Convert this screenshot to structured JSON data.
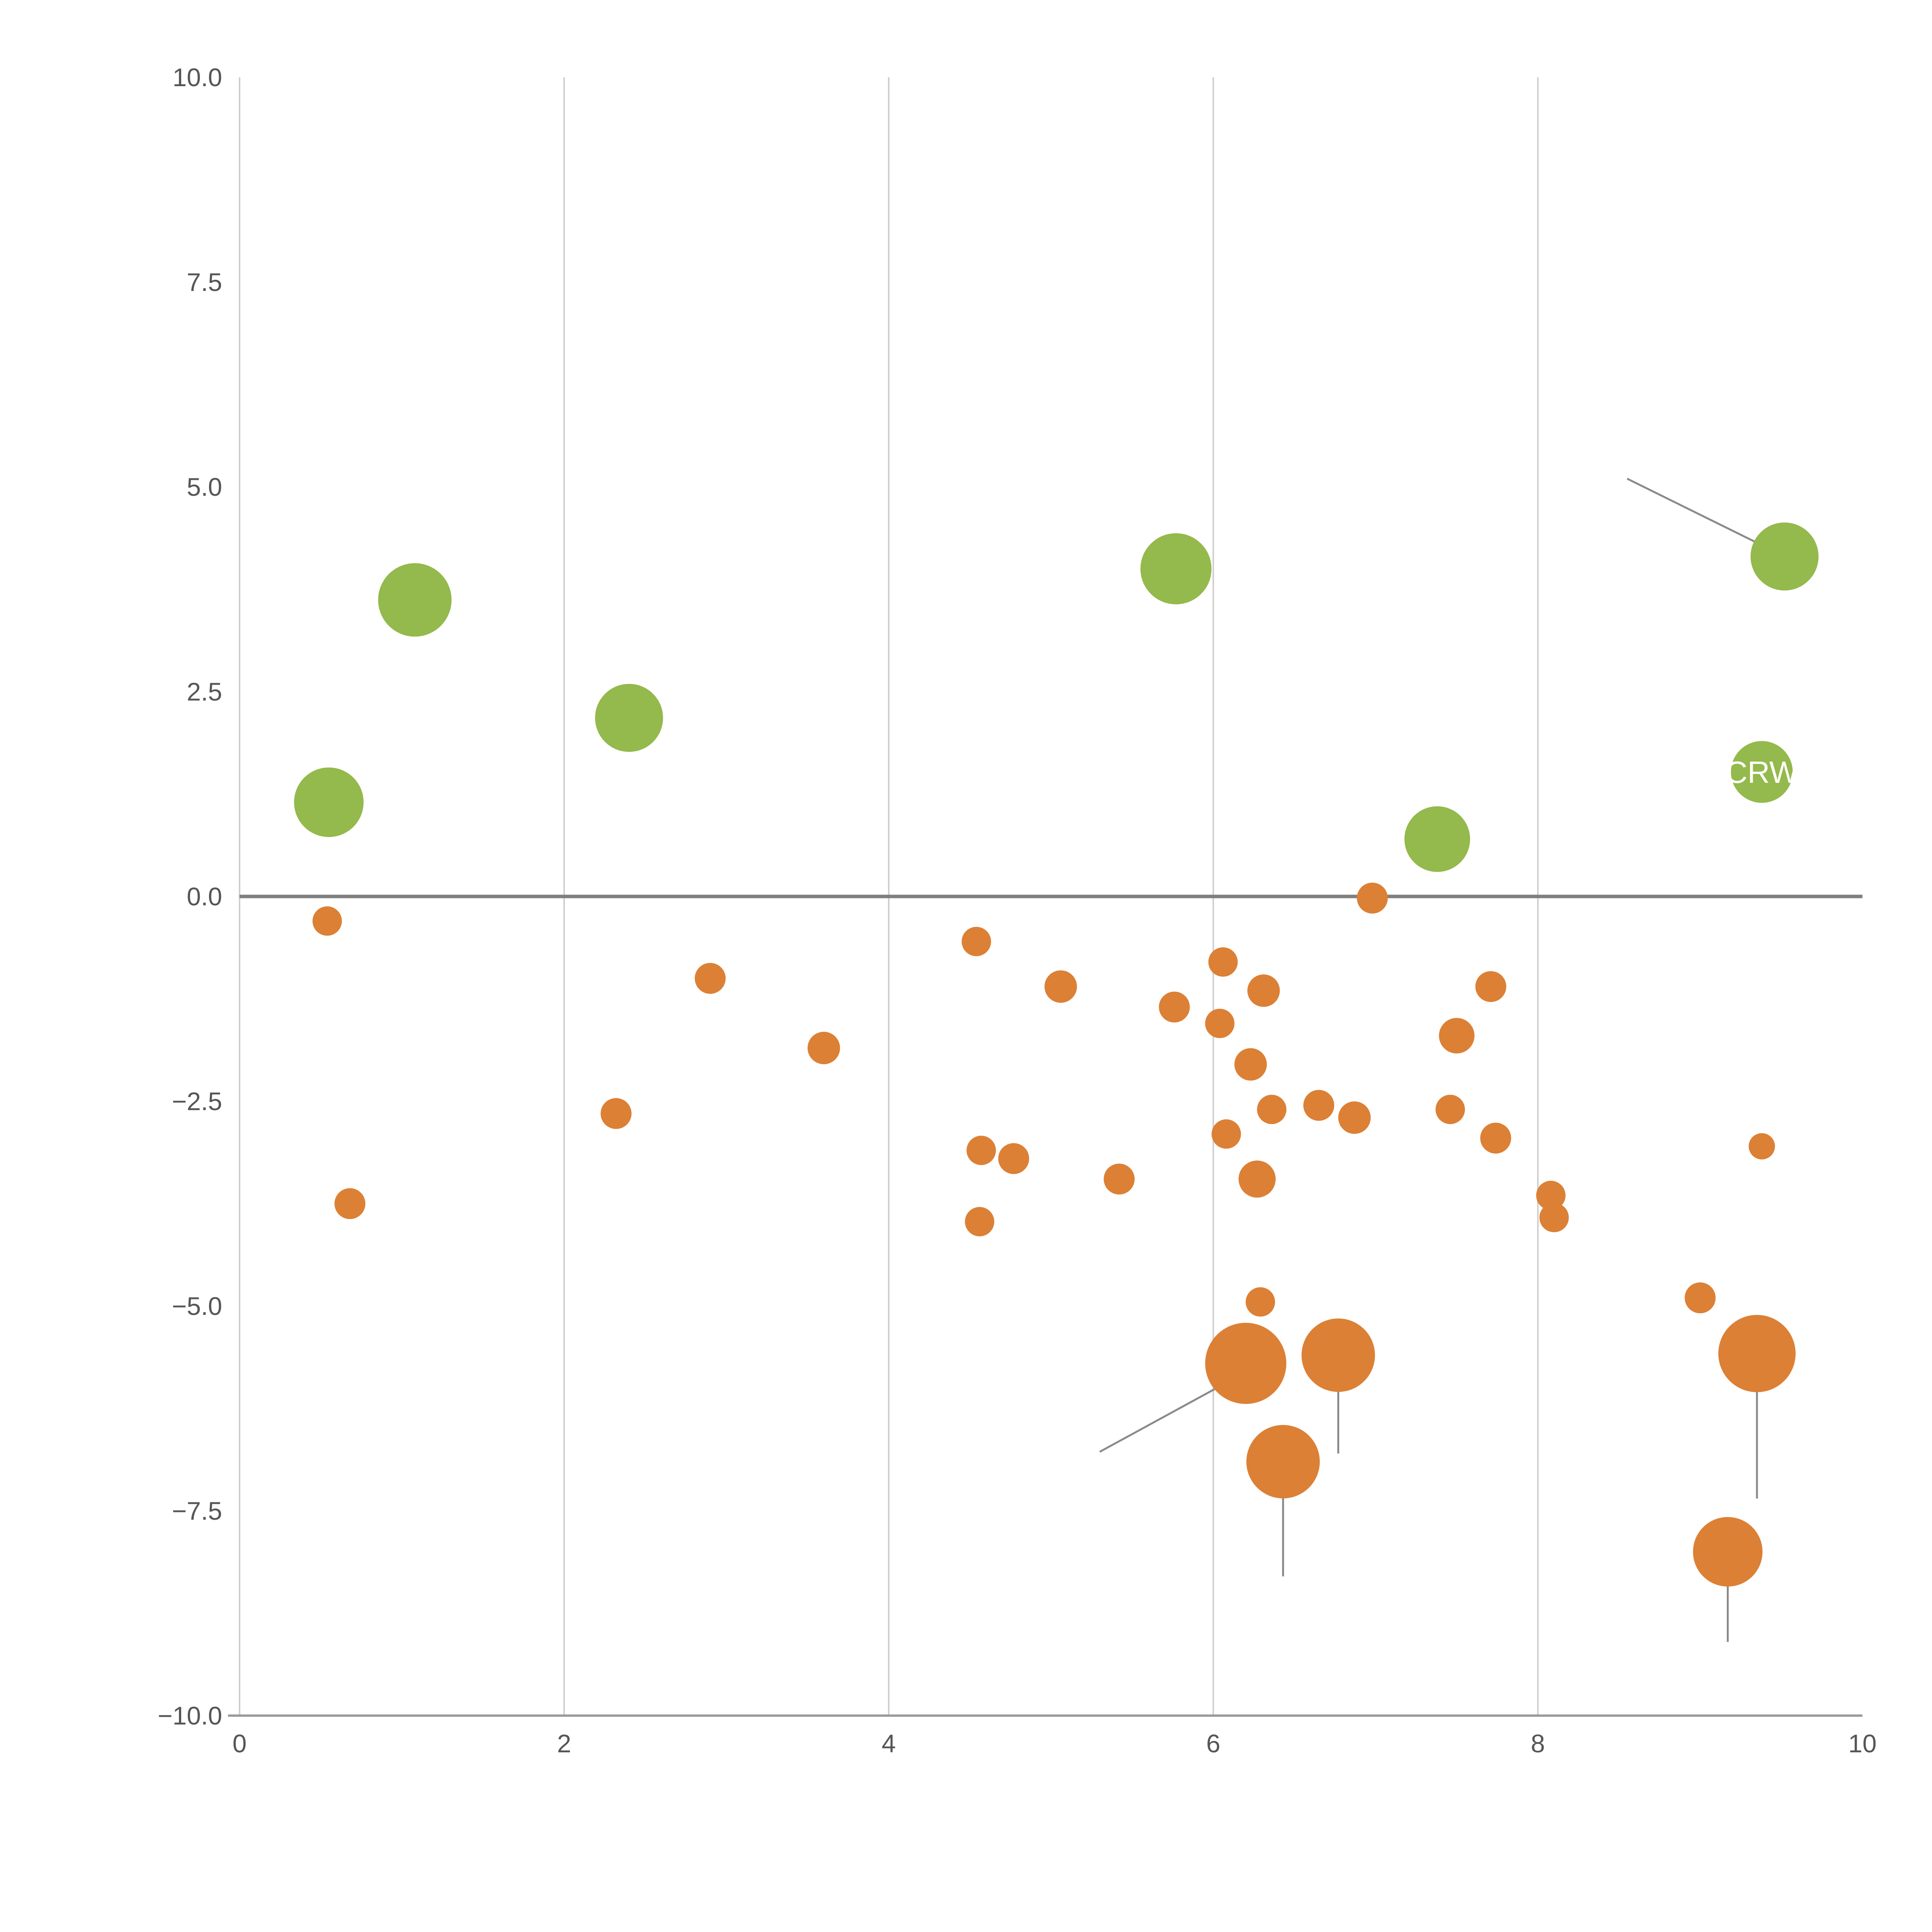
{
  "chart_data": {
    "type": "scatter",
    "title": "",
    "xlabel": "",
    "ylabel": "",
    "xlim": [
      0,
      10
    ],
    "ylim": [
      -10,
      10
    ],
    "grid": "vertical-only",
    "legend": "none",
    "x_tick_values": [
      0,
      2,
      4,
      6,
      8,
      10
    ],
    "x_tick_labels": [
      "0",
      "2",
      "4",
      "6",
      "8",
      "10"
    ],
    "y_tick_values": [
      -10,
      -7.5,
      -5,
      -2.5,
      0,
      2.5,
      5,
      7.5,
      10
    ],
    "y_tick_labels": [
      "−10.0",
      "−7.5",
      "−5.0",
      "−2.5",
      "0.0",
      "2.5",
      "5.0",
      "7.5",
      "10.0"
    ],
    "grid_x_values": [
      2,
      4,
      6,
      8
    ],
    "zero_line_y": 0,
    "colors": {
      "positive_bubble": "#94b94c",
      "negative_bubble": "#dc8035",
      "grid": "#cfcfcf",
      "axis": "#9a9a9a",
      "zero_line": "#7f7f7f",
      "leader_line": "#8a8a8a",
      "tick_text": "#565656",
      "label_text": "#ffffff"
    },
    "series": [
      {
        "name": "positive",
        "color_key": "positive_bubble",
        "points": [
          [
            0.55,
            1.15,
            90
          ],
          [
            1.08,
            3.62,
            95
          ],
          [
            2.4,
            2.18,
            88
          ],
          [
            5.77,
            4.0,
            92
          ],
          [
            7.38,
            0.7,
            85
          ],
          [
            9.52,
            4.15,
            88
          ],
          [
            9.38,
            1.52,
            80
          ]
        ]
      },
      {
        "name": "negative",
        "color_key": "negative_bubble",
        "points": [
          [
            0.54,
            -0.3,
            38
          ],
          [
            0.68,
            -3.75,
            40
          ],
          [
            2.32,
            -2.65,
            40
          ],
          [
            2.9,
            -1.0,
            40
          ],
          [
            3.6,
            -1.85,
            42
          ],
          [
            4.54,
            -0.55,
            38
          ],
          [
            4.57,
            -3.1,
            38
          ],
          [
            4.77,
            -3.2,
            40
          ],
          [
            4.56,
            -3.97,
            38
          ],
          [
            5.06,
            -1.1,
            42
          ],
          [
            5.42,
            -3.45,
            40
          ],
          [
            5.76,
            -1.35,
            40
          ],
          [
            6.06,
            -0.8,
            38
          ],
          [
            6.04,
            -1.55,
            38
          ],
          [
            6.08,
            -2.9,
            38
          ],
          [
            6.31,
            -1.15,
            42
          ],
          [
            6.23,
            -2.05,
            42
          ],
          [
            6.36,
            -2.6,
            38
          ],
          [
            6.27,
            -3.45,
            48
          ],
          [
            6.29,
            -4.95,
            38
          ],
          [
            6.2,
            -5.7,
            105
          ],
          [
            6.43,
            -6.9,
            95
          ],
          [
            6.77,
            -5.6,
            95
          ],
          [
            6.65,
            -2.55,
            40
          ],
          [
            6.87,
            -2.7,
            42
          ],
          [
            6.98,
            -0.02,
            40
          ],
          [
            7.46,
            -2.6,
            38
          ],
          [
            7.5,
            -1.7,
            46
          ],
          [
            7.71,
            -1.1,
            40
          ],
          [
            7.74,
            -2.95,
            40
          ],
          [
            8.08,
            -3.65,
            38
          ],
          [
            8.1,
            -3.92,
            38
          ],
          [
            9.0,
            -4.9,
            40
          ],
          [
            9.38,
            -3.05,
            34
          ],
          [
            9.35,
            -5.58,
            100
          ],
          [
            9.17,
            -8.0,
            90
          ]
        ]
      }
    ],
    "annotations": [
      {
        "text": "CRW",
        "x": 9.38,
        "y": 1.52
      }
    ],
    "leader_lines": [
      [
        8.55,
        5.1,
        9.45,
        4.22
      ],
      [
        5.3,
        -6.78,
        6.16,
        -5.85
      ],
      [
        6.43,
        -6.9,
        6.43,
        -8.3
      ],
      [
        6.77,
        -5.6,
        6.77,
        -6.8
      ],
      [
        9.35,
        -5.58,
        9.35,
        -7.35
      ],
      [
        9.17,
        -8.0,
        9.17,
        -9.1
      ]
    ]
  }
}
